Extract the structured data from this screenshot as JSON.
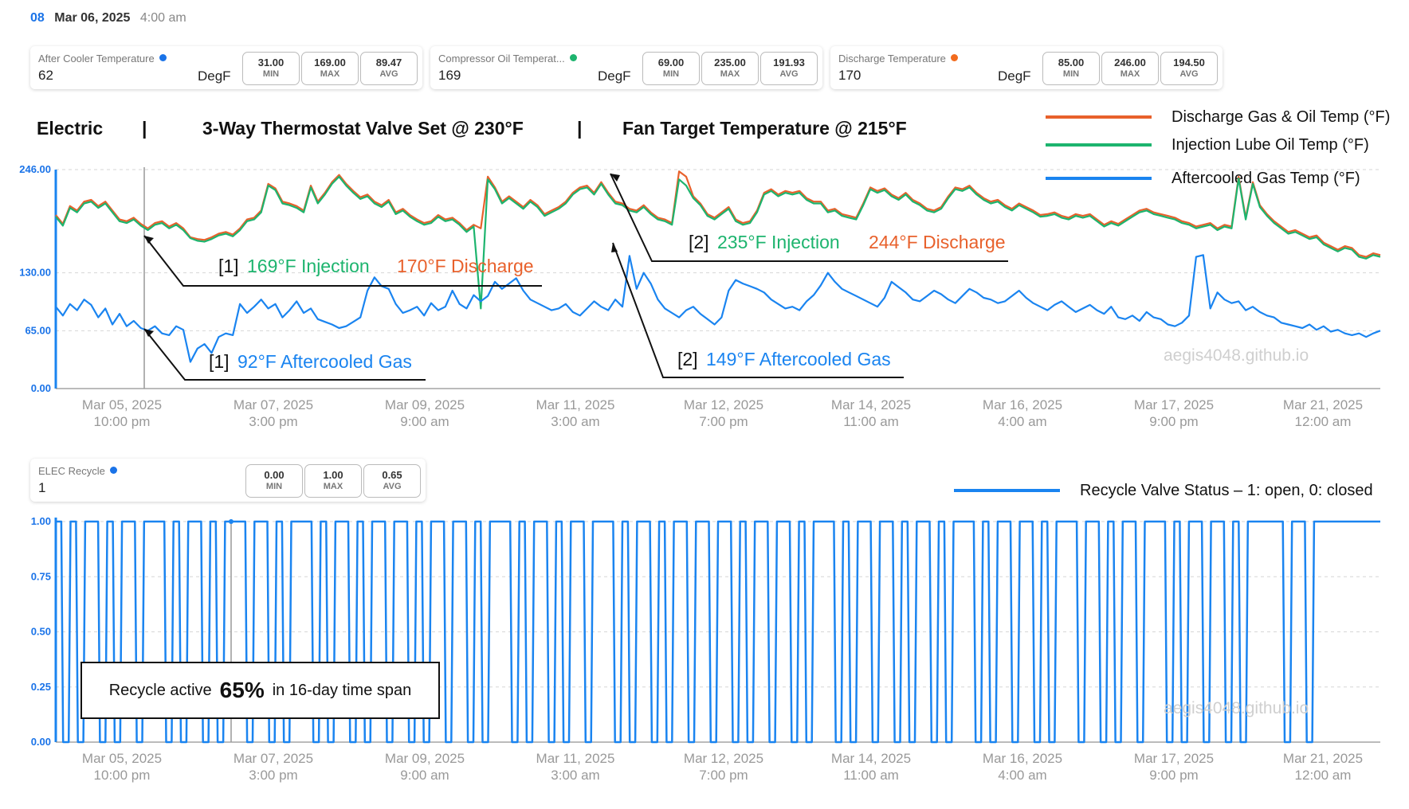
{
  "header": {
    "hour": "08",
    "date": "Mar 06, 2025",
    "time": "4:00 am"
  },
  "cards": [
    {
      "name": "After Cooler Temperature",
      "dot_color": "#1a73e8",
      "value": "62",
      "unit": "DegF",
      "min": "31.00",
      "max": "169.00",
      "avg": "89.47"
    },
    {
      "name": "Compressor Oil Temperat...",
      "dot_color": "#1db46e",
      "value": "169",
      "unit": "DegF",
      "min": "69.00",
      "max": "235.00",
      "avg": "191.93"
    },
    {
      "name": "Discharge Temperature",
      "dot_color": "#f26b1d",
      "value": "170",
      "unit": "DegF",
      "min": "85.00",
      "max": "246.00",
      "avg": "194.50"
    }
  ],
  "recycle_card": {
    "name": "ELEC Recycle",
    "dot_color": "#1a73e8",
    "value": "1",
    "min": "0.00",
    "max": "1.00",
    "avg": "0.65"
  },
  "stat_labels": {
    "min": "MIN",
    "max": "MAX",
    "avg": "AVG"
  },
  "banner": {
    "mode": "Electric",
    "sep1": "|",
    "valve": "3-Way Thermostat Valve Set @ 230°F",
    "sep2": "|",
    "fan": "Fan Target Temperature @ 215°F"
  },
  "watermark": "aegis4048.github.io",
  "recycle_note": {
    "prefix": "Recycle active",
    "percent": "65%",
    "suffix": "in 16-day time span"
  },
  "annotations": [
    {
      "tag": "[1]",
      "inj": "169°F Injection",
      "dis": "170°F Discharge"
    },
    {
      "tag": "[1]",
      "gas": "92°F Aftercooled Gas"
    },
    {
      "tag": "[2]",
      "inj": "235°F Injection",
      "dis": "244°F Discharge"
    },
    {
      "tag": "[2]",
      "gas": "149°F Aftercooled Gas"
    }
  ],
  "colors": {
    "discharge": "#e8612c",
    "injection": "#1db46e",
    "aftercooled": "#1a84f0",
    "recycle": "#1a84f0"
  },
  "chart_data": [
    {
      "type": "line",
      "title": "",
      "ylim": [
        0,
        246
      ],
      "yticks": [
        "0.00",
        "65.00",
        "130.00",
        "246.00"
      ],
      "ytick_values": [
        0,
        65,
        130,
        246
      ],
      "xticks": [
        [
          "Mar 05, 2025",
          "10:00 pm"
        ],
        [
          "Mar 07, 2025",
          "3:00 pm"
        ],
        [
          "Mar 09, 2025",
          "9:00 am"
        ],
        [
          "Mar 11, 2025",
          "3:00 am"
        ],
        [
          "Mar 12, 2025",
          "7:00 pm"
        ],
        [
          "Mar 14, 2025",
          "11:00 am"
        ],
        [
          "Mar 16, 2025",
          "4:00 am"
        ],
        [
          "Mar 17, 2025",
          "9:00 pm"
        ],
        [
          "Mar 21, 2025",
          "12:00 am"
        ]
      ],
      "legend_position": "top-right",
      "series": [
        {
          "name": "Discharge Gas & Oil Temp (°F)",
          "values": [
            195,
            185,
            205,
            200,
            210,
            212,
            205,
            210,
            200,
            190,
            188,
            192,
            185,
            180,
            186,
            188,
            182,
            186,
            180,
            170,
            168,
            167,
            170,
            174,
            176,
            173,
            180,
            190,
            192,
            200,
            230,
            225,
            210,
            208,
            205,
            200,
            228,
            210,
            220,
            232,
            240,
            230,
            222,
            215,
            218,
            210,
            206,
            212,
            198,
            202,
            195,
            190,
            186,
            188,
            195,
            190,
            192,
            186,
            178,
            184,
            180,
            238,
            226,
            210,
            216,
            210,
            204,
            212,
            206,
            196,
            200,
            204,
            210,
            220,
            226,
            228,
            220,
            232,
            220,
            210,
            208,
            202,
            200,
            206,
            198,
            192,
            190,
            186,
            244,
            238,
            216,
            208,
            196,
            192,
            198,
            204,
            190,
            186,
            188,
            200,
            220,
            224,
            218,
            222,
            220,
            222,
            214,
            210,
            210,
            200,
            202,
            196,
            194,
            192,
            208,
            226,
            222,
            225,
            218,
            214,
            220,
            212,
            208,
            202,
            200,
            204,
            216,
            226,
            224,
            228,
            220,
            214,
            210,
            212,
            206,
            202,
            208,
            204,
            200,
            195,
            196,
            198,
            194,
            192,
            196,
            194,
            196,
            190,
            184,
            188,
            185,
            190,
            195,
            200,
            202,
            198,
            196,
            194,
            192,
            188,
            186,
            182,
            184,
            186,
            180,
            184,
            182,
            238,
            192,
            232,
            206,
            196,
            188,
            182,
            176,
            178,
            174,
            170,
            172,
            164,
            160,
            156,
            160,
            158,
            150,
            148,
            152,
            150
          ]
        },
        {
          "name": "Injection Lube Oil Temp (°F)",
          "values": [
            193,
            183,
            203,
            198,
            208,
            210,
            203,
            208,
            198,
            188,
            186,
            190,
            183,
            178,
            184,
            186,
            180,
            184,
            178,
            169,
            166,
            165,
            168,
            172,
            174,
            171,
            178,
            188,
            190,
            198,
            228,
            223,
            208,
            206,
            203,
            198,
            226,
            208,
            218,
            230,
            238,
            228,
            220,
            213,
            216,
            208,
            204,
            210,
            196,
            200,
            193,
            188,
            184,
            186,
            193,
            188,
            190,
            184,
            176,
            182,
            90,
            235,
            224,
            208,
            214,
            208,
            202,
            210,
            204,
            194,
            198,
            202,
            208,
            218,
            224,
            226,
            218,
            230,
            218,
            208,
            206,
            200,
            198,
            204,
            196,
            190,
            188,
            184,
            235,
            228,
            214,
            206,
            194,
            190,
            196,
            202,
            188,
            184,
            186,
            198,
            218,
            222,
            216,
            220,
            218,
            220,
            212,
            208,
            208,
            198,
            200,
            194,
            192,
            190,
            206,
            224,
            220,
            223,
            216,
            212,
            218,
            210,
            206,
            200,
            198,
            202,
            214,
            224,
            222,
            226,
            218,
            212,
            208,
            210,
            204,
            200,
            206,
            202,
            198,
            193,
            194,
            196,
            192,
            190,
            194,
            192,
            194,
            188,
            182,
            186,
            183,
            188,
            193,
            198,
            200,
            196,
            194,
            192,
            190,
            186,
            184,
            180,
            182,
            184,
            178,
            182,
            180,
            236,
            190,
            230,
            204,
            194,
            186,
            180,
            174,
            176,
            172,
            168,
            170,
            162,
            158,
            154,
            158,
            156,
            148,
            146,
            150,
            148
          ]
        },
        {
          "name": "Aftercooled Gas Temp (°F)",
          "values": [
            92,
            82,
            95,
            88,
            100,
            94,
            80,
            90,
            72,
            84,
            70,
            76,
            68,
            65,
            70,
            62,
            60,
            70,
            66,
            30,
            45,
            50,
            40,
            58,
            62,
            60,
            95,
            85,
            92,
            100,
            90,
            95,
            80,
            88,
            98,
            85,
            90,
            78,
            75,
            72,
            68,
            70,
            75,
            80,
            110,
            125,
            115,
            112,
            95,
            85,
            88,
            92,
            82,
            96,
            88,
            92,
            110,
            95,
            90,
            105,
            98,
            104,
            120,
            112,
            118,
            124,
            110,
            100,
            96,
            92,
            88,
            90,
            95,
            86,
            82,
            90,
            98,
            92,
            88,
            100,
            92,
            149,
            112,
            130,
            118,
            100,
            90,
            85,
            80,
            88,
            92,
            84,
            78,
            72,
            80,
            110,
            122,
            118,
            115,
            112,
            108,
            100,
            95,
            90,
            92,
            88,
            98,
            105,
            116,
            130,
            120,
            112,
            108,
            104,
            100,
            96,
            92,
            102,
            120,
            114,
            108,
            100,
            98,
            104,
            110,
            106,
            100,
            96,
            104,
            112,
            108,
            102,
            100,
            96,
            98,
            104,
            110,
            102,
            96,
            92,
            88,
            94,
            98,
            92,
            86,
            90,
            94,
            88,
            84,
            92,
            80,
            78,
            82,
            76,
            86,
            80,
            78,
            72,
            70,
            74,
            82,
            148,
            150,
            90,
            108,
            100,
            96,
            98,
            88,
            92,
            86,
            82,
            80,
            74,
            72,
            70,
            68,
            72,
            66,
            70,
            64,
            66,
            62,
            60,
            62,
            58,
            62,
            65
          ]
        }
      ]
    },
    {
      "type": "line",
      "title": "",
      "ylim": [
        0,
        1
      ],
      "yticks": [
        "0.00",
        "0.25",
        "0.50",
        "0.75",
        "1.00"
      ],
      "ytick_values": [
        0,
        0.25,
        0.5,
        0.75,
        1
      ],
      "xticks": [
        [
          "Mar 05, 2025",
          "10:00 pm"
        ],
        [
          "Mar 07, 2025",
          "3:00 pm"
        ],
        [
          "Mar 09, 2025",
          "9:00 am"
        ],
        [
          "Mar 11, 2025",
          "3:00 am"
        ],
        [
          "Mar 12, 2025",
          "7:00 pm"
        ],
        [
          "Mar 14, 2025",
          "11:00 am"
        ],
        [
          "Mar 16, 2025",
          "4:00 am"
        ],
        [
          "Mar 17, 2025",
          "9:00 pm"
        ],
        [
          "Mar 21, 2025",
          "12:00 am"
        ]
      ],
      "legend_position": "top-right",
      "series": [
        {
          "name": "Recycle Valve Status – 1: open, 0: closed",
          "values": [
            1,
            0,
            1,
            0,
            1,
            1,
            0,
            1,
            0,
            1,
            1,
            0,
            1,
            1,
            1,
            0,
            1,
            0,
            1,
            1,
            0,
            1,
            0,
            1,
            1,
            1,
            0,
            1,
            1,
            0,
            1,
            0,
            1,
            1,
            1,
            0,
            1,
            0,
            1,
            1,
            0,
            1,
            0,
            1,
            1,
            0,
            1,
            1,
            0,
            1,
            0,
            1,
            1,
            0,
            1,
            1,
            0,
            1,
            0,
            1,
            1,
            1,
            0,
            1,
            0,
            1,
            1,
            0,
            1,
            0,
            1,
            1,
            0,
            1,
            1,
            1,
            0,
            1,
            0,
            1,
            1,
            0,
            1,
            0,
            1,
            1,
            0,
            1,
            1,
            0,
            1,
            1,
            0,
            1,
            0,
            1,
            1,
            0,
            1,
            1,
            0,
            1,
            0,
            1,
            1,
            1,
            0,
            1,
            0,
            1,
            1,
            0,
            1,
            1,
            0,
            1,
            0,
            1,
            1,
            0,
            1,
            0,
            1,
            1,
            1,
            0,
            1,
            0,
            1,
            1,
            0,
            1,
            1,
            0,
            1,
            0,
            1,
            1,
            1,
            0,
            1,
            1,
            0,
            1,
            0,
            1,
            1,
            0,
            1,
            1,
            1,
            0,
            1,
            0,
            1,
            1,
            0,
            1,
            1,
            0,
            1,
            0,
            1,
            1,
            1,
            1,
            1,
            0,
            1,
            1,
            0,
            1,
            1,
            1,
            1,
            1,
            1,
            1,
            1,
            1,
            1
          ]
        }
      ]
    }
  ]
}
